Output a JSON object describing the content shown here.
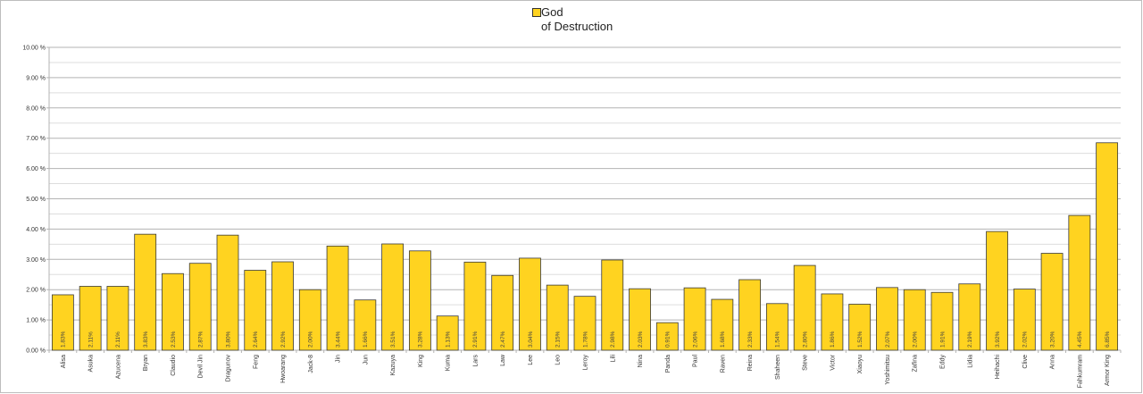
{
  "chart_data": {
    "type": "bar",
    "legend": {
      "position": "top-center",
      "series_name_line1": "God",
      "series_name_line2": "of Destruction"
    },
    "series": [
      {
        "name": "God of Destruction",
        "color": "#ffd320"
      }
    ],
    "categories": [
      "Alisa",
      "Asuka",
      "Azucena",
      "Bryan",
      "Claudio",
      "Devil Jin",
      "Dragunov",
      "Feng",
      "Hwoarang",
      "Jack-8",
      "Jin",
      "Jun",
      "Kazuya",
      "King",
      "Kuma",
      "Lars",
      "Law",
      "Lee",
      "Leo",
      "Leroy",
      "Lili",
      "Nina",
      "Panda",
      "Paul",
      "Raven",
      "Reina",
      "Shaheen",
      "Steve",
      "Victor",
      "Xiaoyu",
      "Yoshimitsu",
      "Zafina",
      "Eddy",
      "Lidia",
      "Heihachi",
      "Clive",
      "Anna",
      "Fahkumram",
      "Armor King"
    ],
    "values": [
      1.83,
      2.11,
      2.11,
      3.83,
      2.53,
      2.87,
      3.8,
      2.64,
      2.92,
      2.0,
      3.44,
      1.66,
      3.51,
      3.28,
      1.13,
      2.91,
      2.47,
      3.04,
      2.15,
      1.78,
      2.98,
      2.03,
      0.91,
      2.06,
      1.68,
      2.33,
      1.54,
      2.8,
      1.86,
      1.52,
      2.07,
      2.0,
      1.91,
      2.19,
      3.92,
      2.02,
      3.2,
      4.45,
      6.85
    ],
    "value_labels": [
      "1.83%",
      "2.11%",
      "2.11%",
      "3.83%",
      "2.53%",
      "2.87%",
      "3.80%",
      "2.64%",
      "2.92%",
      "2.00%",
      "3.44%",
      "1.66%",
      "3.51%",
      "3.28%",
      "1.13%",
      "2.91%",
      "2.47%",
      "3.04%",
      "2.15%",
      "1.78%",
      "2.98%",
      "2.03%",
      "0.91%",
      "2.06%",
      "1.68%",
      "2.33%",
      "1.54%",
      "2.80%",
      "1.86%",
      "1.52%",
      "2.07%",
      "2.00%",
      "1.91%",
      "2.19%",
      "3.92%",
      "2.02%",
      "3.20%",
      "4.45%",
      "6.85%"
    ],
    "ylim": [
      0,
      10
    ],
    "yticks": [
      "0.00 %",
      "1.00 %",
      "2.00 %",
      "3.00 %",
      "4.00 %",
      "5.00 %",
      "6.00 %",
      "7.00 %",
      "8.00 %",
      "9.00 %",
      "10.00 %"
    ],
    "grid": true,
    "title": "",
    "xlabel": "",
    "ylabel": ""
  }
}
